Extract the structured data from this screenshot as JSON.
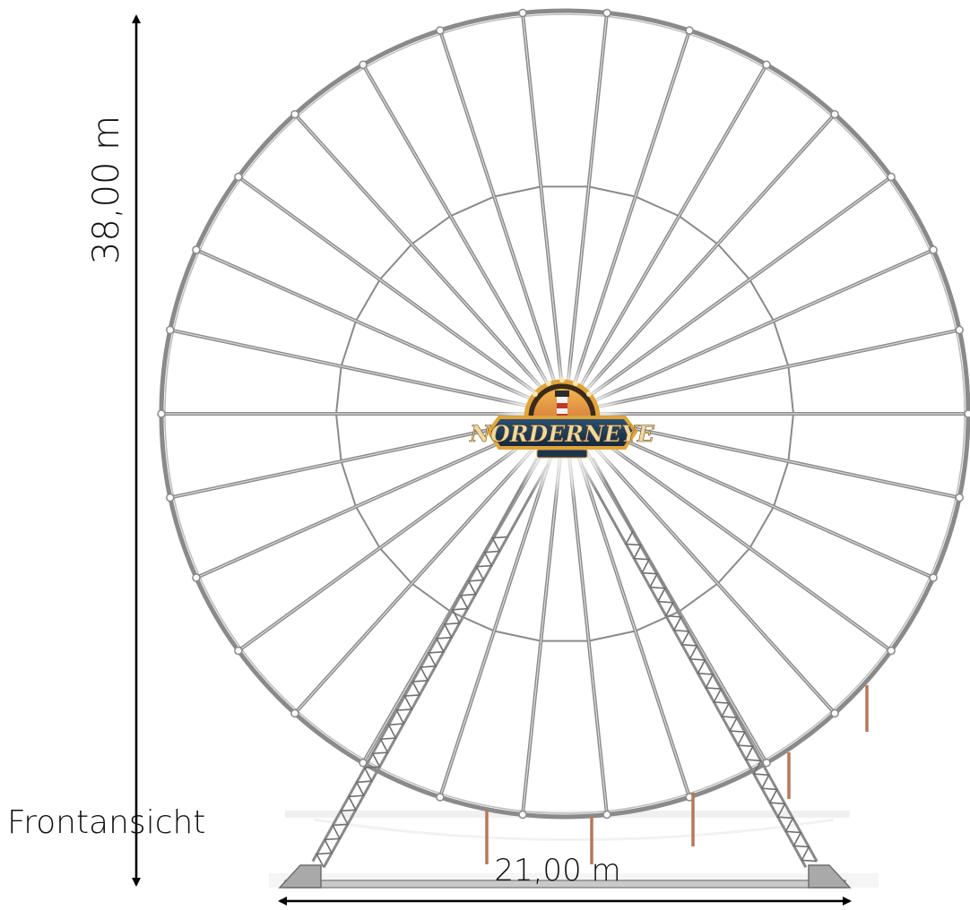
{
  "labels": {
    "height": "38,00 m",
    "width": "21,00 m",
    "view": "Frontansicht"
  },
  "logo": {
    "title": "NORDERNEYE"
  },
  "wheel": {
    "spokes": 30,
    "outer_diameter_m": 38.0,
    "base_width_m": 21.0
  },
  "colors": {
    "structure": "#8a8a8a",
    "structure_light": "#bdbdbd",
    "anchor": "#b5785a",
    "logo_gold": "#e0a43a",
    "logo_navy": "#1d3550",
    "arrow": "#000000"
  }
}
